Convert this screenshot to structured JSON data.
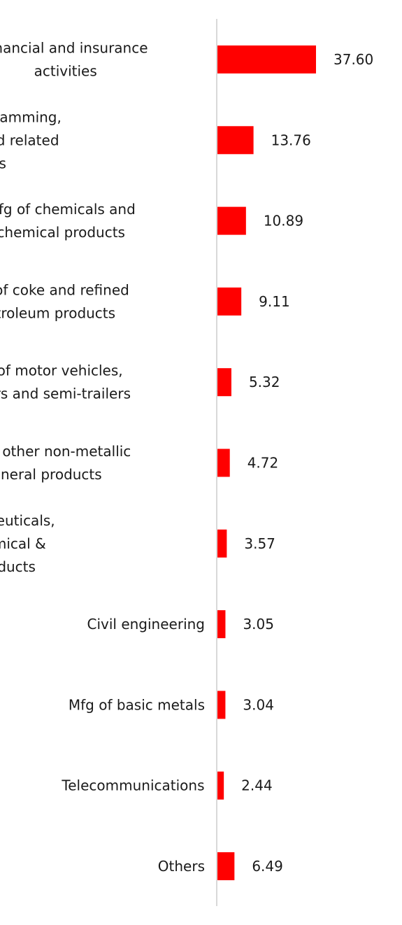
{
  "chart_data": {
    "type": "bar",
    "orientation": "horizontal",
    "categories": [
      [
        "Financial and insurance",
        "activities"
      ],
      [
        "Computer programming,",
        "consultancy and related",
        "activities"
      ],
      [
        "Mfg of chemicals and",
        "chemical products"
      ],
      [
        "Mfg of coke and refined",
        "petroleum products"
      ],
      [
        "Mfg of motor vehicles,",
        "trailers and semi-trailers"
      ],
      [
        "Mfg of other non-metallic",
        "mineral products"
      ],
      [
        "Mfg of pharmaceuticals,",
        "medicinal chemical &",
        "botanical products"
      ],
      [
        "Civil engineering"
      ],
      [
        "Mfg of basic metals"
      ],
      [
        "Telecommunications"
      ],
      [
        "Others"
      ]
    ],
    "values": [
      37.6,
      13.76,
      10.89,
      9.11,
      5.32,
      4.72,
      3.57,
      3.05,
      3.04,
      2.44,
      6.49
    ],
    "value_labels": [
      "37.60",
      "13.76",
      "10.89",
      "9.11",
      "5.32",
      "4.72",
      "3.57",
      "3.05",
      "3.04",
      "2.44",
      "6.49"
    ],
    "title": "",
    "xlabel": "",
    "ylabel": "",
    "xlim": [
      0,
      40
    ],
    "grid": false,
    "legend": "none",
    "colors": {
      "bar": "#ff0000",
      "axis": "#d9d9d9",
      "text": "#1a1a1a"
    }
  }
}
